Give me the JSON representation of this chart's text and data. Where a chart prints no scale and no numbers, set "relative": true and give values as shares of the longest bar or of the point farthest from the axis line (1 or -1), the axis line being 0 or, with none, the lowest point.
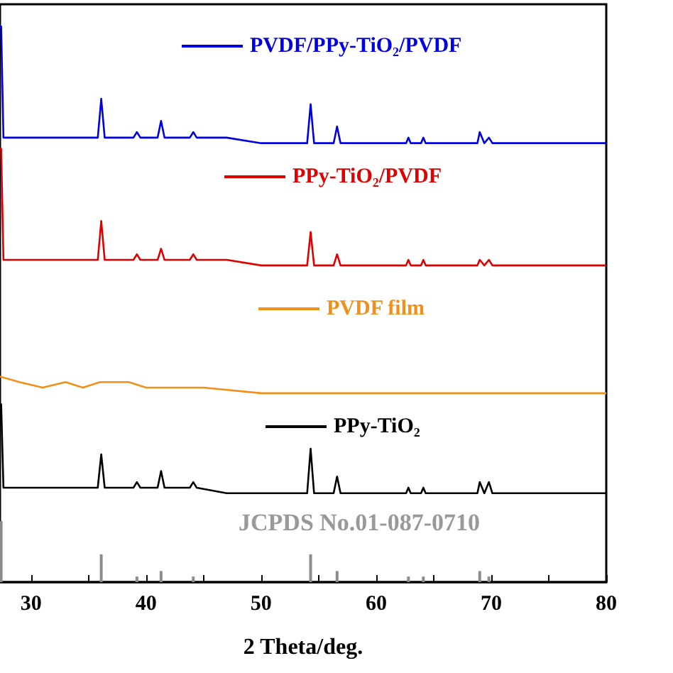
{
  "chart_data": {
    "type": "line",
    "relative": true,
    "xlabel": "2 Theta/deg.",
    "xlim": [
      27.3,
      80
    ],
    "xticks": [
      30,
      {
        "value": 35,
        "label": null
      },
      40,
      {
        "value": 45,
        "label": null
      },
      50,
      {
        "value": 55,
        "label": null
      },
      60,
      {
        "value": 65,
        "label": null
      },
      70,
      {
        "value": 75,
        "label": null
      },
      80
    ],
    "x": [
      27.3,
      27.4,
      27.6,
      28,
      30,
      33,
      35.8,
      36.1,
      36.4,
      38.9,
      39.2,
      39.5,
      41,
      41.3,
      41.6,
      43.8,
      44.1,
      44.4,
      47,
      50,
      54,
      54.3,
      54.6,
      56.3,
      56.6,
      56.9,
      60,
      62.6,
      62.8,
      63,
      63.9,
      64.1,
      64.3,
      68.8,
      69.0,
      69.4,
      69.8,
      70.1,
      75,
      80
    ],
    "series": [
      {
        "name": "PVDF/PPy-TiO₂/PVDF",
        "color": "#0000e0",
        "values": [
          1.0,
          1.0,
          0.8,
          0.8,
          0.8,
          0.8,
          0.8,
          0.87,
          0.8,
          0.8,
          0.81,
          0.8,
          0.8,
          0.83,
          0.8,
          0.8,
          0.81,
          0.8,
          0.8,
          0.79,
          0.79,
          0.86,
          0.79,
          0.79,
          0.82,
          0.79,
          0.79,
          0.79,
          0.8,
          0.79,
          0.79,
          0.8,
          0.79,
          0.79,
          0.81,
          0.79,
          0.8,
          0.79,
          0.79,
          0.79
        ]
      },
      {
        "name": "PPy-TiO₂/PVDF",
        "color": "#e00000",
        "values": [
          0.78,
          0.78,
          0.58,
          0.58,
          0.58,
          0.58,
          0.58,
          0.65,
          0.58,
          0.58,
          0.59,
          0.58,
          0.58,
          0.6,
          0.58,
          0.58,
          0.59,
          0.58,
          0.58,
          0.57,
          0.57,
          0.63,
          0.57,
          0.57,
          0.59,
          0.57,
          0.57,
          0.57,
          0.58,
          0.57,
          0.57,
          0.58,
          0.57,
          0.57,
          0.58,
          0.57,
          0.58,
          0.57,
          0.57,
          0.57
        ]
      },
      {
        "name": "PVDF film",
        "color": "#f0901a",
        "x": [
          27.3,
          29,
          31,
          33,
          34.5,
          36,
          37,
          38.5,
          40,
          45,
          50,
          55,
          60,
          70,
          80
        ],
        "values": [
          0.37,
          0.36,
          0.35,
          0.36,
          0.35,
          0.36,
          0.36,
          0.36,
          0.35,
          0.35,
          0.34,
          0.34,
          0.34,
          0.34,
          0.34
        ]
      },
      {
        "name": "PPy-TiO₂",
        "color": "#000000",
        "values": [
          0.32,
          0.32,
          0.17,
          0.17,
          0.17,
          0.17,
          0.17,
          0.23,
          0.17,
          0.17,
          0.18,
          0.17,
          0.17,
          0.2,
          0.17,
          0.17,
          0.18,
          0.17,
          0.16,
          0.16,
          0.16,
          0.24,
          0.16,
          0.16,
          0.19,
          0.16,
          0.16,
          0.16,
          0.17,
          0.16,
          0.16,
          0.17,
          0.16,
          0.16,
          0.18,
          0.16,
          0.18,
          0.16,
          0.16,
          0.16
        ]
      },
      {
        "type": "bar",
        "color": "#8c8c8c",
        "x": [
          27.4,
          36.1,
          39.2,
          41.3,
          44.1,
          54.3,
          56.6,
          62.8,
          64.1,
          69.0,
          69.8
        ],
        "values": [
          0.11,
          0.05,
          0.01,
          0.02,
          0.01,
          0.05,
          0.02,
          0.01,
          0.01,
          0.02,
          0.01
        ]
      }
    ],
    "annotations": [
      "JCPDS No.01-087-0710"
    ],
    "legend": "top",
    "marker": "none",
    "line_style": "solid",
    "grid": false
  }
}
